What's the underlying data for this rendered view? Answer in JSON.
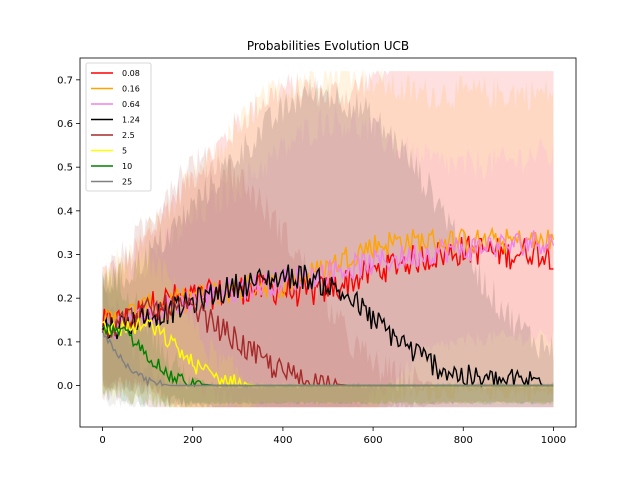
{
  "chart_data": {
    "type": "line",
    "title": "Probabilities Evolution UCB",
    "xlabel": "",
    "ylabel": "",
    "xlim": [
      -50,
      1050
    ],
    "ylim": [
      -0.095,
      0.75
    ],
    "xticks": [
      0,
      200,
      400,
      600,
      800,
      1000
    ],
    "xtick_labels": [
      "0",
      "200",
      "400",
      "600",
      "800",
      "1000"
    ],
    "yticks": [
      0.0,
      0.1,
      0.2,
      0.3,
      0.4,
      0.5,
      0.6,
      0.7
    ],
    "ytick_labels": [
      "0.0",
      "0.1",
      "0.2",
      "0.3",
      "0.4",
      "0.5",
      "0.6",
      "0.7"
    ],
    "grid": false,
    "legend_position": "top-left",
    "series": [
      {
        "name": "0.08",
        "color": "#ff0000",
        "x": [
          0,
          50,
          100,
          150,
          200,
          250,
          300,
          350,
          400,
          450,
          500,
          550,
          600,
          650,
          700,
          750,
          800,
          850,
          900,
          950,
          1000
        ],
        "values": [
          0.14,
          0.15,
          0.18,
          0.2,
          0.2,
          0.21,
          0.22,
          0.22,
          0.22,
          0.21,
          0.22,
          0.24,
          0.26,
          0.28,
          0.29,
          0.3,
          0.31,
          0.31,
          0.3,
          0.31,
          0.3
        ],
        "band": [
          0.12,
          0.12,
          0.16,
          0.22,
          0.28,
          0.33,
          0.38,
          0.43,
          0.46,
          0.47,
          0.45,
          0.43,
          0.45,
          0.48,
          0.5,
          0.51,
          0.52,
          0.53,
          0.55,
          0.56,
          0.55
        ],
        "noise": 0.035
      },
      {
        "name": "0.16",
        "color": "#ffa500",
        "x": [
          0,
          50,
          100,
          150,
          200,
          250,
          300,
          350,
          400,
          450,
          500,
          550,
          600,
          650,
          700,
          750,
          800,
          850,
          900,
          950,
          1000
        ],
        "values": [
          0.14,
          0.16,
          0.18,
          0.19,
          0.2,
          0.21,
          0.22,
          0.23,
          0.23,
          0.25,
          0.27,
          0.3,
          0.32,
          0.33,
          0.33,
          0.33,
          0.33,
          0.33,
          0.33,
          0.33,
          0.33
        ],
        "band": [
          0.12,
          0.13,
          0.17,
          0.22,
          0.27,
          0.32,
          0.37,
          0.42,
          0.45,
          0.46,
          0.45,
          0.42,
          0.38,
          0.35,
          0.34,
          0.34,
          0.34,
          0.34,
          0.34,
          0.34,
          0.34
        ],
        "noise": 0.03
      },
      {
        "name": "0.64",
        "color": "#ee82ee",
        "x": [
          0,
          50,
          100,
          150,
          200,
          250,
          300,
          350,
          400,
          450,
          500,
          550,
          600,
          650,
          700,
          750,
          800,
          850,
          900,
          950,
          1000
        ],
        "values": [
          0.13,
          0.14,
          0.16,
          0.18,
          0.2,
          0.21,
          0.22,
          0.23,
          0.24,
          0.25,
          0.26,
          0.27,
          0.28,
          0.29,
          0.3,
          0.31,
          0.31,
          0.32,
          0.32,
          0.33,
          0.33
        ],
        "band": [
          0.1,
          0.11,
          0.13,
          0.15,
          0.18,
          0.21,
          0.24,
          0.27,
          0.3,
          0.33,
          0.35,
          0.33,
          0.3,
          0.26,
          0.22,
          0.2,
          0.19,
          0.19,
          0.19,
          0.2,
          0.2
        ],
        "noise": 0.03
      },
      {
        "name": "1.24",
        "color": "#000000",
        "x": [
          0,
          50,
          100,
          150,
          200,
          250,
          300,
          350,
          400,
          450,
          500,
          550,
          600,
          650,
          700,
          750,
          800,
          850,
          900,
          950,
          1000
        ],
        "values": [
          0.13,
          0.14,
          0.16,
          0.17,
          0.19,
          0.21,
          0.23,
          0.24,
          0.25,
          0.25,
          0.23,
          0.2,
          0.15,
          0.11,
          0.07,
          0.04,
          0.02,
          0.01,
          0.01,
          0.01,
          0.01
        ],
        "band": [
          0.1,
          0.11,
          0.14,
          0.18,
          0.22,
          0.26,
          0.3,
          0.34,
          0.38,
          0.42,
          0.44,
          0.45,
          0.46,
          0.45,
          0.42,
          0.37,
          0.3,
          0.22,
          0.15,
          0.1,
          0.07
        ],
        "noise": 0.03
      },
      {
        "name": "2.5",
        "color": "#a52a2a",
        "x": [
          0,
          50,
          100,
          150,
          200,
          250,
          300,
          350,
          400,
          450,
          500,
          550,
          600,
          650,
          700,
          750,
          800,
          850,
          900,
          950,
          1000
        ],
        "values": [
          0.13,
          0.15,
          0.17,
          0.18,
          0.17,
          0.14,
          0.1,
          0.06,
          0.03,
          0.01,
          0.005,
          0.0,
          0.0,
          0.0,
          0.0,
          0.0,
          0.0,
          0.0,
          0.0,
          0.0,
          0.0
        ],
        "band": [
          0.12,
          0.15,
          0.2,
          0.28,
          0.34,
          0.37,
          0.38,
          0.36,
          0.32,
          0.26,
          0.18,
          0.1,
          0.05,
          0.02,
          0.01,
          0.0,
          0.0,
          0.0,
          0.0,
          0.0,
          0.0
        ],
        "noise": 0.03
      },
      {
        "name": "5",
        "color": "#ffff00",
        "x": [
          0,
          50,
          100,
          150,
          200,
          250,
          300,
          350,
          400,
          450,
          500,
          550,
          600,
          650,
          700,
          750,
          800,
          850,
          900,
          950,
          1000
        ],
        "values": [
          0.13,
          0.13,
          0.14,
          0.1,
          0.05,
          0.02,
          0.005,
          0.0,
          0.0,
          0.0,
          0.0,
          0.0,
          0.0,
          0.0,
          0.0,
          0.0,
          0.0,
          0.0,
          0.0,
          0.0,
          0.0
        ],
        "band": [
          0.12,
          0.13,
          0.15,
          0.14,
          0.09,
          0.04,
          0.02,
          0.0,
          0.0,
          0.0,
          0.0,
          0.0,
          0.0,
          0.0,
          0.0,
          0.0,
          0.0,
          0.0,
          0.0,
          0.0,
          0.0
        ],
        "noise": 0.02
      },
      {
        "name": "10",
        "color": "#008000",
        "x": [
          0,
          50,
          100,
          150,
          200,
          250,
          300,
          350,
          400,
          450,
          500,
          550,
          600,
          650,
          700,
          750,
          800,
          850,
          900,
          950,
          1000
        ],
        "values": [
          0.13,
          0.12,
          0.07,
          0.02,
          0.005,
          0.0,
          0.0,
          0.0,
          0.0,
          0.0,
          0.0,
          0.0,
          0.0,
          0.0,
          0.0,
          0.0,
          0.0,
          0.0,
          0.0,
          0.0,
          0.0
        ],
        "band": [
          0.12,
          0.11,
          0.07,
          0.03,
          0.01,
          0.0,
          0.0,
          0.0,
          0.0,
          0.0,
          0.0,
          0.0,
          0.0,
          0.0,
          0.0,
          0.0,
          0.0,
          0.0,
          0.0,
          0.0,
          0.0
        ],
        "noise": 0.015
      },
      {
        "name": "25",
        "color": "#808080",
        "x": [
          0,
          50,
          100,
          150,
          200,
          250,
          300,
          350,
          400,
          450,
          500,
          550,
          600,
          650,
          700,
          750,
          800,
          850,
          900,
          950,
          1000
        ],
        "values": [
          0.12,
          0.05,
          0.01,
          0.0,
          0.0,
          0.0,
          0.0,
          0.0,
          0.0,
          0.0,
          0.0,
          0.0,
          0.0,
          0.0,
          0.0,
          0.0,
          0.0,
          0.0,
          0.0,
          0.0,
          0.0
        ],
        "band": [
          0.12,
          0.07,
          0.02,
          0.005,
          0.0,
          0.0,
          0.0,
          0.0,
          0.0,
          0.0,
          0.0,
          0.0,
          0.0,
          0.0,
          0.0,
          0.0,
          0.0,
          0.0,
          0.0,
          0.0,
          0.0
        ],
        "noise": 0.008
      }
    ]
  }
}
